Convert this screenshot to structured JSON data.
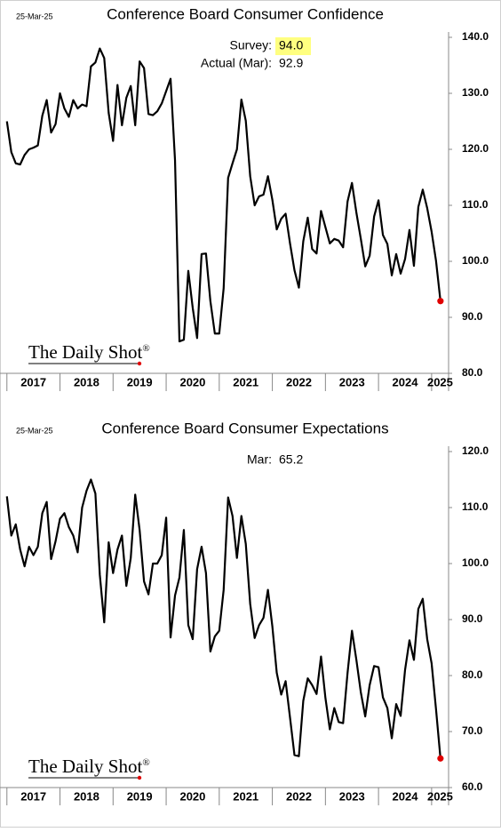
{
  "chart_data": [
    {
      "type": "line",
      "title": "Conference Board Consumer Confidence",
      "date": "25-Mar-25",
      "annotations": [
        {
          "label": "Survey:",
          "value": 94,
          "value_label": "94.0",
          "highlight": "#ffff80"
        },
        {
          "label": "Actual (Mar):",
          "value": 92.9
        }
      ],
      "logo": "The Daily Shot",
      "logo_mark": "®",
      "x": [
        2017,
        2017.083,
        2017.167,
        2017.25,
        2017.333,
        2017.417,
        2017.5,
        2017.583,
        2017.667,
        2017.75,
        2017.833,
        2017.917,
        2018,
        2018.083,
        2018.167,
        2018.25,
        2018.333,
        2018.417,
        2018.5,
        2018.583,
        2018.667,
        2018.75,
        2018.833,
        2018.917,
        2019,
        2019.083,
        2019.167,
        2019.25,
        2019.333,
        2019.417,
        2019.5,
        2019.583,
        2019.667,
        2019.75,
        2019.833,
        2019.917,
        2020,
        2020.083,
        2020.167,
        2020.25,
        2020.333,
        2020.417,
        2020.5,
        2020.583,
        2020.667,
        2020.75,
        2020.833,
        2020.917,
        2021,
        2021.083,
        2021.167,
        2021.25,
        2021.333,
        2021.417,
        2021.5,
        2021.583,
        2021.667,
        2021.75,
        2021.833,
        2021.917,
        2022,
        2022.083,
        2022.167,
        2022.25,
        2022.333,
        2022.417,
        2022.5,
        2022.583,
        2022.667,
        2022.75,
        2022.833,
        2022.917,
        2023,
        2023.083,
        2023.167,
        2023.25,
        2023.333,
        2023.417,
        2023.5,
        2023.583,
        2023.667,
        2023.75,
        2023.833,
        2023.917,
        2024,
        2024.083,
        2024.167,
        2024.25,
        2024.333,
        2024.417,
        2024.5,
        2024.583,
        2024.667,
        2024.75,
        2024.833,
        2024.917,
        2025,
        2025.083,
        2025.167
      ],
      "series": [
        {
          "name": "Consumer Confidence",
          "color": "#000000",
          "last_point_color": "#e00000",
          "values": [
            125,
            119.5,
            117.5,
            117.3,
            119,
            120,
            120.3,
            120.7,
            126,
            128.8,
            123,
            124.5,
            130,
            127.3,
            125.8,
            128.8,
            127.3,
            128,
            127.7,
            134.8,
            135.5,
            138,
            136.3,
            126.5,
            121.5,
            131.5,
            124.3,
            129.2,
            131.3,
            124.3,
            135.7,
            134.5,
            126.3,
            126.1,
            126.8,
            128.2,
            130.4,
            132.6,
            118,
            85.7,
            86,
            98.3,
            91.7,
            86.3,
            101.3,
            101.4,
            92.9,
            87.1,
            87.1,
            95.2,
            114.9,
            117.5,
            120,
            128.9,
            125.1,
            115.2,
            110,
            111.6,
            111.9,
            115.2,
            111,
            105.7,
            107.6,
            108.5,
            103.2,
            98.4,
            95.3,
            103.6,
            107.8,
            102.2,
            101.4,
            109,
            106.1,
            103.2,
            104,
            103.7,
            102.5,
            110.7,
            114,
            108.7,
            104,
            99.1,
            101,
            108,
            110.9,
            104.7,
            103.1,
            97.5,
            101.3,
            97.8,
            100.4,
            105.6,
            99.2,
            109.7,
            112.8,
            109.5,
            105.3,
            100.1,
            92.9
          ]
        }
      ],
      "xlim": [
        2016.87,
        2025.32
      ],
      "xticks": [
        2017,
        2018,
        2019,
        2020,
        2021,
        2022,
        2023,
        2024,
        2025
      ],
      "ylim": [
        80,
        140
      ],
      "yticks": [
        {
          "value": 80,
          "label": "80.0"
        },
        {
          "value": 90,
          "label": "90.0"
        },
        {
          "value": 100,
          "label": "100.0"
        },
        {
          "value": 110,
          "label": "110.0"
        },
        {
          "value": 120,
          "label": "120.0"
        },
        {
          "value": 130,
          "label": "130.0"
        },
        {
          "value": 140,
          "label": "140.0"
        }
      ]
    },
    {
      "type": "line",
      "title": "Conference Board Consumer Expectations",
      "date": "25-Mar-25",
      "annotations": [
        {
          "label": "Mar:",
          "value": 65.2
        }
      ],
      "logo": "The Daily Shot",
      "logo_mark": "®",
      "x": [
        2017,
        2017.083,
        2017.167,
        2017.25,
        2017.333,
        2017.417,
        2017.5,
        2017.583,
        2017.667,
        2017.75,
        2017.833,
        2017.917,
        2018,
        2018.083,
        2018.167,
        2018.25,
        2018.333,
        2018.417,
        2018.5,
        2018.583,
        2018.667,
        2018.75,
        2018.833,
        2018.917,
        2019,
        2019.083,
        2019.167,
        2019.25,
        2019.333,
        2019.417,
        2019.5,
        2019.583,
        2019.667,
        2019.75,
        2019.833,
        2019.917,
        2020,
        2020.083,
        2020.167,
        2020.25,
        2020.333,
        2020.417,
        2020.5,
        2020.583,
        2020.667,
        2020.75,
        2020.833,
        2020.917,
        2021,
        2021.083,
        2021.167,
        2021.25,
        2021.333,
        2021.417,
        2021.5,
        2021.583,
        2021.667,
        2021.75,
        2021.833,
        2021.917,
        2022,
        2022.083,
        2022.167,
        2022.25,
        2022.333,
        2022.417,
        2022.5,
        2022.583,
        2022.667,
        2022.75,
        2022.833,
        2022.917,
        2023,
        2023.083,
        2023.167,
        2023.25,
        2023.333,
        2023.417,
        2023.5,
        2023.583,
        2023.667,
        2023.75,
        2023.833,
        2023.917,
        2024,
        2024.083,
        2024.167,
        2024.25,
        2024.333,
        2024.417,
        2024.5,
        2024.583,
        2024.667,
        2024.75,
        2024.833,
        2024.917,
        2025,
        2025.083,
        2025.167
      ],
      "series": [
        {
          "name": "Consumer Expectations",
          "color": "#000000",
          "last_point_color": "#e00000",
          "values": [
            112,
            105,
            107,
            102.5,
            99.5,
            103,
            101.5,
            103,
            109,
            111,
            100.8,
            104,
            108,
            109,
            106.5,
            105,
            102,
            110,
            113,
            115,
            112.5,
            98,
            89.5,
            103.8,
            98.3,
            102.5,
            105,
            96,
            101,
            112.3,
            106,
            96.8,
            94.5,
            100,
            100,
            101.5,
            108.2,
            86.8,
            94.3,
            97.5,
            106,
            89,
            86.5,
            99,
            103,
            98.3,
            84.3,
            87,
            88,
            95.3,
            111.8,
            108.5,
            101,
            108.5,
            103.5,
            92.8,
            86.7,
            89,
            90.3,
            95.3,
            88.8,
            80.5,
            76.6,
            79,
            72.5,
            65.8,
            65.6,
            75.5,
            79.5,
            78.3,
            76.7,
            83.4,
            76,
            70.4,
            74.2,
            71.7,
            71.5,
            80.5,
            88,
            82.8,
            77,
            72.7,
            78.3,
            81.7,
            81.5,
            76.1,
            74.2,
            68.8,
            74.9,
            72.8,
            81,
            86.3,
            82.8,
            91.9,
            93.7,
            86.5,
            82.2,
            74,
            65.2
          ]
        }
      ],
      "xlim": [
        2016.87,
        2025.32
      ],
      "xticks": [
        2017,
        2018,
        2019,
        2020,
        2021,
        2022,
        2023,
        2024,
        2025
      ],
      "ylim": [
        60,
        120
      ],
      "yticks": [
        {
          "value": 60,
          "label": "60.0"
        },
        {
          "value": 70,
          "label": "70.0"
        },
        {
          "value": 80,
          "label": "80.0"
        },
        {
          "value": 90,
          "label": "90.0"
        },
        {
          "value": 100,
          "label": "100.0"
        },
        {
          "value": 110,
          "label": "110.0"
        },
        {
          "value": 120,
          "label": "120.0"
        }
      ]
    }
  ]
}
